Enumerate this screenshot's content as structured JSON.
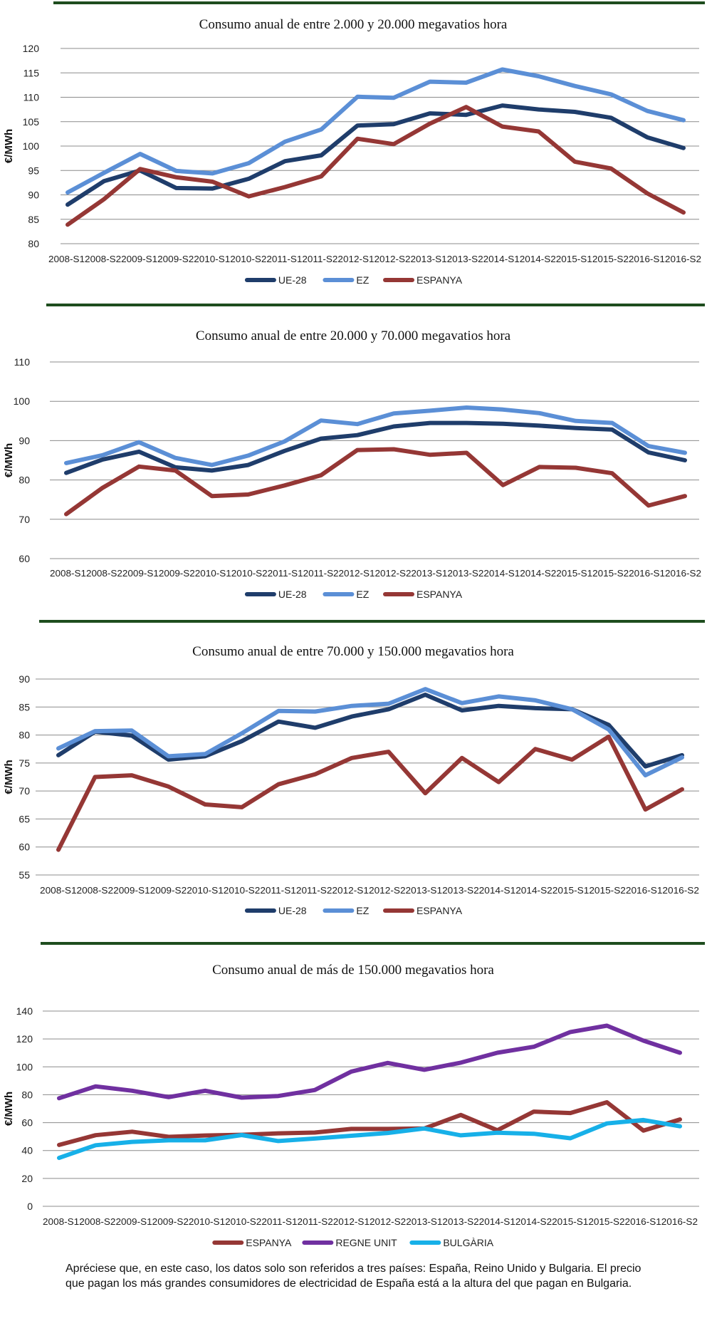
{
  "chart_data": [
    {
      "type": "line",
      "title": "Consumo anual de entre 2.000 y 20.000 megavatios hora",
      "ylabel": "€/MWh",
      "ylim": [
        80,
        120
      ],
      "yticks": [
        80,
        85,
        90,
        95,
        100,
        105,
        110,
        115,
        120
      ],
      "categories": [
        "2008-S1",
        "2008-S2",
        "2009-S1",
        "2009-S2",
        "2010-S1",
        "2010-S2",
        "2011-S1",
        "2011-S2",
        "2012-S1",
        "2012-S2",
        "2013-S1",
        "2013-S2",
        "2014-S1",
        "2014-S2",
        "2015-S1",
        "2015-S2",
        "2016-S1",
        "2016-S2"
      ],
      "x_tick_text": "2008-S12008-S22009-S12009-S22010-S12010-S22011-S12011-S22012-S12012-S22013-S12013-S22014-S12014-S22015-S12015-S22016-S12016-S2",
      "legend_position": "bottom",
      "grid": true,
      "series": [
        {
          "name": "UE-28",
          "color": "#1f3d6b",
          "values": [
            88,
            92.8,
            95,
            91.4,
            91.3,
            93.3,
            96.9,
            98.1,
            104.2,
            104.5,
            106.7,
            106.4,
            108.3,
            107.5,
            107,
            105.8,
            101.8,
            99.6
          ]
        },
        {
          "name": "EZ",
          "color": "#5b8fd6",
          "values": [
            90.5,
            94.5,
            98.4,
            94.9,
            94.4,
            96.5,
            100.9,
            103.4,
            110.1,
            109.9,
            113.2,
            113,
            115.7,
            114.3,
            112.3,
            110.6,
            107.2,
            105.3
          ]
        },
        {
          "name": "ESPANYA",
          "color": "#953735",
          "values": [
            83.9,
            89.1,
            95.3,
            93.6,
            92.7,
            89.7,
            91.6,
            93.8,
            101.5,
            100.4,
            104.6,
            108,
            104,
            103,
            96.8,
            95.4,
            90.3,
            86.4
          ]
        }
      ]
    },
    {
      "type": "line",
      "title": "Consumo anual de entre 20.000 y 70.000 megavatios hora",
      "ylabel": "€/MWh",
      "ylim": [
        60,
        110
      ],
      "yticks": [
        60,
        70,
        80,
        90,
        100,
        110
      ],
      "categories": [
        "2008-S1",
        "2008-S2",
        "2009-S1",
        "2009-S2",
        "2010-S1",
        "2010-S2",
        "2011-S1",
        "2011-S2",
        "2012-S1",
        "2012-S2",
        "2013-S1",
        "2013-S2",
        "2014-S1",
        "2014-S2",
        "2015-S1",
        "2015-S2",
        "2016-S1",
        "2016-S2"
      ],
      "x_tick_text": "2008-S12008-S22009-S12009-S22010-S12010-S22011-S12011-S22012-S12012-S22013-S12013-S22014-S12014-S22015-S12015-S22016-S12016-S2",
      "legend_position": "bottom",
      "grid": true,
      "series": [
        {
          "name": "UE-28",
          "color": "#1f3d6b",
          "values": [
            81.8,
            85.2,
            87.2,
            83.2,
            82.4,
            83.8,
            87.4,
            90.5,
            91.4,
            93.6,
            94.5,
            94.5,
            94.3,
            93.8,
            93.2,
            92.8,
            87,
            85
          ]
        },
        {
          "name": "EZ",
          "color": "#5b8fd6",
          "values": [
            84.3,
            86.3,
            89.6,
            85.6,
            83.8,
            86.2,
            89.8,
            95.1,
            94.2,
            96.9,
            97.6,
            98.4,
            97.9,
            97,
            95,
            94.5,
            88.6,
            86.9
          ]
        },
        {
          "name": "ESPANYA",
          "color": "#953735",
          "values": [
            71.3,
            78,
            83.4,
            82.4,
            75.9,
            76.3,
            78.6,
            81.2,
            87.6,
            87.8,
            86.4,
            86.9,
            78.7,
            83.3,
            83.1,
            81.7,
            73.5,
            75.9
          ]
        }
      ]
    },
    {
      "type": "line",
      "title": "Consumo anual de entre 70.000  y 150.000 megavatios hora",
      "ylabel": "€/MWh",
      "ylim": [
        55,
        90
      ],
      "yticks": [
        55,
        60,
        65,
        70,
        75,
        80,
        85,
        90
      ],
      "categories": [
        "2008-S1",
        "2008-S2",
        "2009-S1",
        "2009-S2",
        "2010-S1",
        "2010-S2",
        "2011-S1",
        "2011-S2",
        "2012-S1",
        "2012-S2",
        "2013-S1",
        "2013-S2",
        "2014-S1",
        "2014-S2",
        "2015-S1",
        "2015-S2",
        "2016-S1",
        "2016-S2"
      ],
      "x_tick_text": "2008-S12008-S22009-S12009-S22010-S12010-S22011-S12011-S22012-S12012-S22013-S12013-S22014-S12014-S22015-S12015-S22016-S12016-S2",
      "legend_position": "bottom",
      "grid": true,
      "series": [
        {
          "name": "UE-28",
          "color": "#1f3d6b",
          "values": [
            76.4,
            80.6,
            79.9,
            75.6,
            76.2,
            78.9,
            82.4,
            81.3,
            83.3,
            84.6,
            87.2,
            84.4,
            85.2,
            84.8,
            84.6,
            81.8,
            74.4,
            76.4
          ]
        },
        {
          "name": "EZ",
          "color": "#5b8fd6",
          "values": [
            77.6,
            80.7,
            80.8,
            76.2,
            76.6,
            80.3,
            84.3,
            84.2,
            85.2,
            85.6,
            88.2,
            85.7,
            86.9,
            86.2,
            84.6,
            81,
            72.8,
            76
          ]
        },
        {
          "name": "ESPANYA",
          "color": "#953735",
          "values": [
            59.5,
            72.5,
            72.8,
            70.8,
            67.6,
            67.1,
            71.2,
            73,
            75.9,
            77,
            69.6,
            75.9,
            71.6,
            77.5,
            75.6,
            79.7,
            66.7,
            70.3
          ]
        }
      ]
    },
    {
      "type": "line",
      "title": "Consumo anual de más de 150.000 megavatios hora",
      "ylabel": "€/MWh",
      "ylim": [
        0,
        140
      ],
      "yticks": [
        0,
        20,
        40,
        60,
        80,
        100,
        120,
        140
      ],
      "categories": [
        "2008-S1",
        "2008-S2",
        "2009-S1",
        "2009-S2",
        "2010-S1",
        "2010-S2",
        "2011-S1",
        "2011-S2",
        "2012-S1",
        "2012-S2",
        "2013-S1",
        "2013-S2",
        "2014-S1",
        "2014-S2",
        "2015-S1",
        "2015-S2",
        "2016-S1",
        "2016-S2"
      ],
      "x_tick_text": "2008-S12008-S22009-S12009-S22010-S12010-S22011-S12011-S22012-S12012-S22013-S12013-S22014-S12014-S22015-S12015-S22016-S12016-S2",
      "legend_position": "bottom",
      "grid": true,
      "series": [
        {
          "name": "ESPANYA",
          "color": "#953735",
          "values": [
            44,
            51,
            53.5,
            49.8,
            50.8,
            51.3,
            52.3,
            52.9,
            55.5,
            55.5,
            55.8,
            65.5,
            54.5,
            67.9,
            66.9,
            74.6,
            54.3,
            62.3
          ]
        },
        {
          "name": "REGNE UNIT",
          "color": "#7030a0",
          "values": [
            77.5,
            86,
            82.9,
            78.3,
            82.9,
            77.9,
            79.1,
            83.4,
            96.6,
            102.8,
            97.9,
            103,
            110.1,
            114.4,
            125,
            129.5,
            118.8,
            110.1
          ]
        },
        {
          "name": "BULGÀRIA",
          "color": "#17b0e8",
          "values": [
            34.7,
            43.8,
            46.2,
            47.3,
            47.3,
            51.1,
            46.8,
            48.6,
            50.6,
            52.6,
            55.8,
            50.9,
            52.8,
            52,
            48.8,
            59.4,
            61.9,
            57.4
          ]
        }
      ]
    }
  ],
  "note": "Apréciese que, en este caso, los datos solo son referidos a tres países: España, Reino Unido y Bulgaria. El precio que pagan los más grandes consumidores de electricidad de España está a la altura del que pagan en Bulgaria."
}
